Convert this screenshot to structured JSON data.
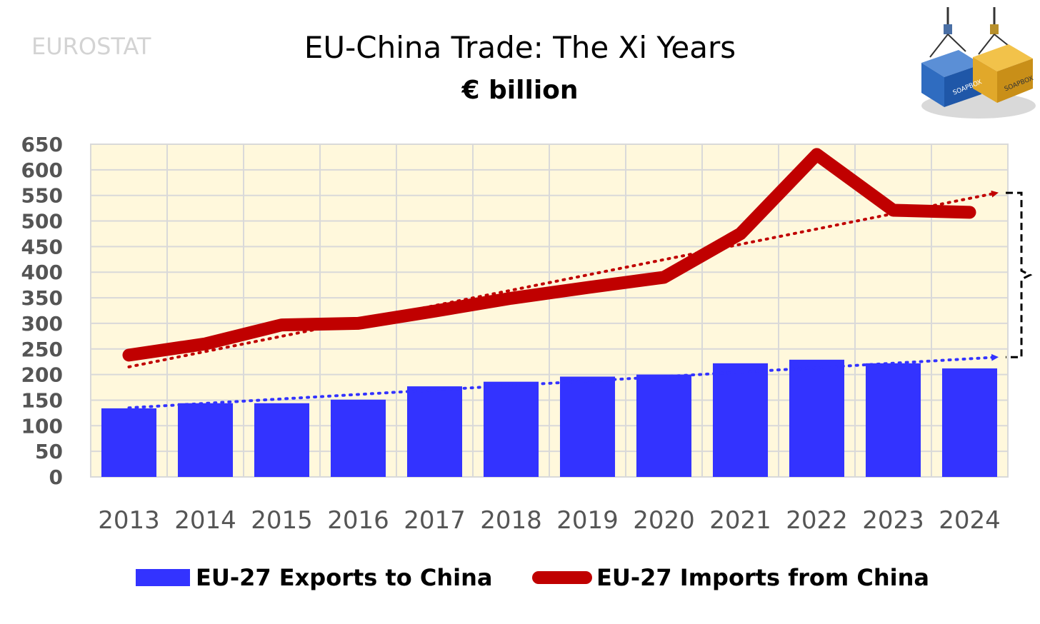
{
  "source_label": "EUROSTAT",
  "logo": {
    "text": "SOAPBOX"
  },
  "chart_data": {
    "type": "bar",
    "title": "EU-China Trade: The Xi Years",
    "subtitle": "€ billion",
    "categories": [
      "2013",
      "2014",
      "2015",
      "2016",
      "2017",
      "2018",
      "2019",
      "2020",
      "2021",
      "2022",
      "2023",
      "2024"
    ],
    "ylim": [
      0,
      650
    ],
    "yticks": [
      0,
      50,
      100,
      150,
      200,
      250,
      300,
      350,
      400,
      450,
      500,
      550,
      600,
      650
    ],
    "grid": true,
    "legend_position": "bottom",
    "colors": {
      "exports": "#3333ff",
      "imports": "#c00000",
      "plot_bg": "#fff8dc"
    },
    "series": [
      {
        "name": "EU-27 Exports to China",
        "kind": "bar",
        "values": [
          134,
          144,
          144,
          151,
          177,
          186,
          196,
          200,
          222,
          229,
          222,
          212
        ]
      },
      {
        "name": "EU-27 Imports from China",
        "kind": "line",
        "values": [
          238,
          260,
          297,
          300,
          324,
          349,
          370,
          390,
          475,
          630,
          521,
          517
        ]
      }
    ],
    "trendlines": [
      {
        "series": "EU-27 Exports to China",
        "style": "dotted-arrow",
        "from": [
          2013,
          135
        ],
        "to": [
          2024,
          234
        ]
      },
      {
        "series": "EU-27 Imports from China",
        "style": "dotted-arrow",
        "from": [
          2013,
          215
        ],
        "to": [
          2024,
          555
        ]
      }
    ],
    "annotation": {
      "type": "bracket",
      "between": [
        234,
        555
      ],
      "at": "2024"
    }
  }
}
